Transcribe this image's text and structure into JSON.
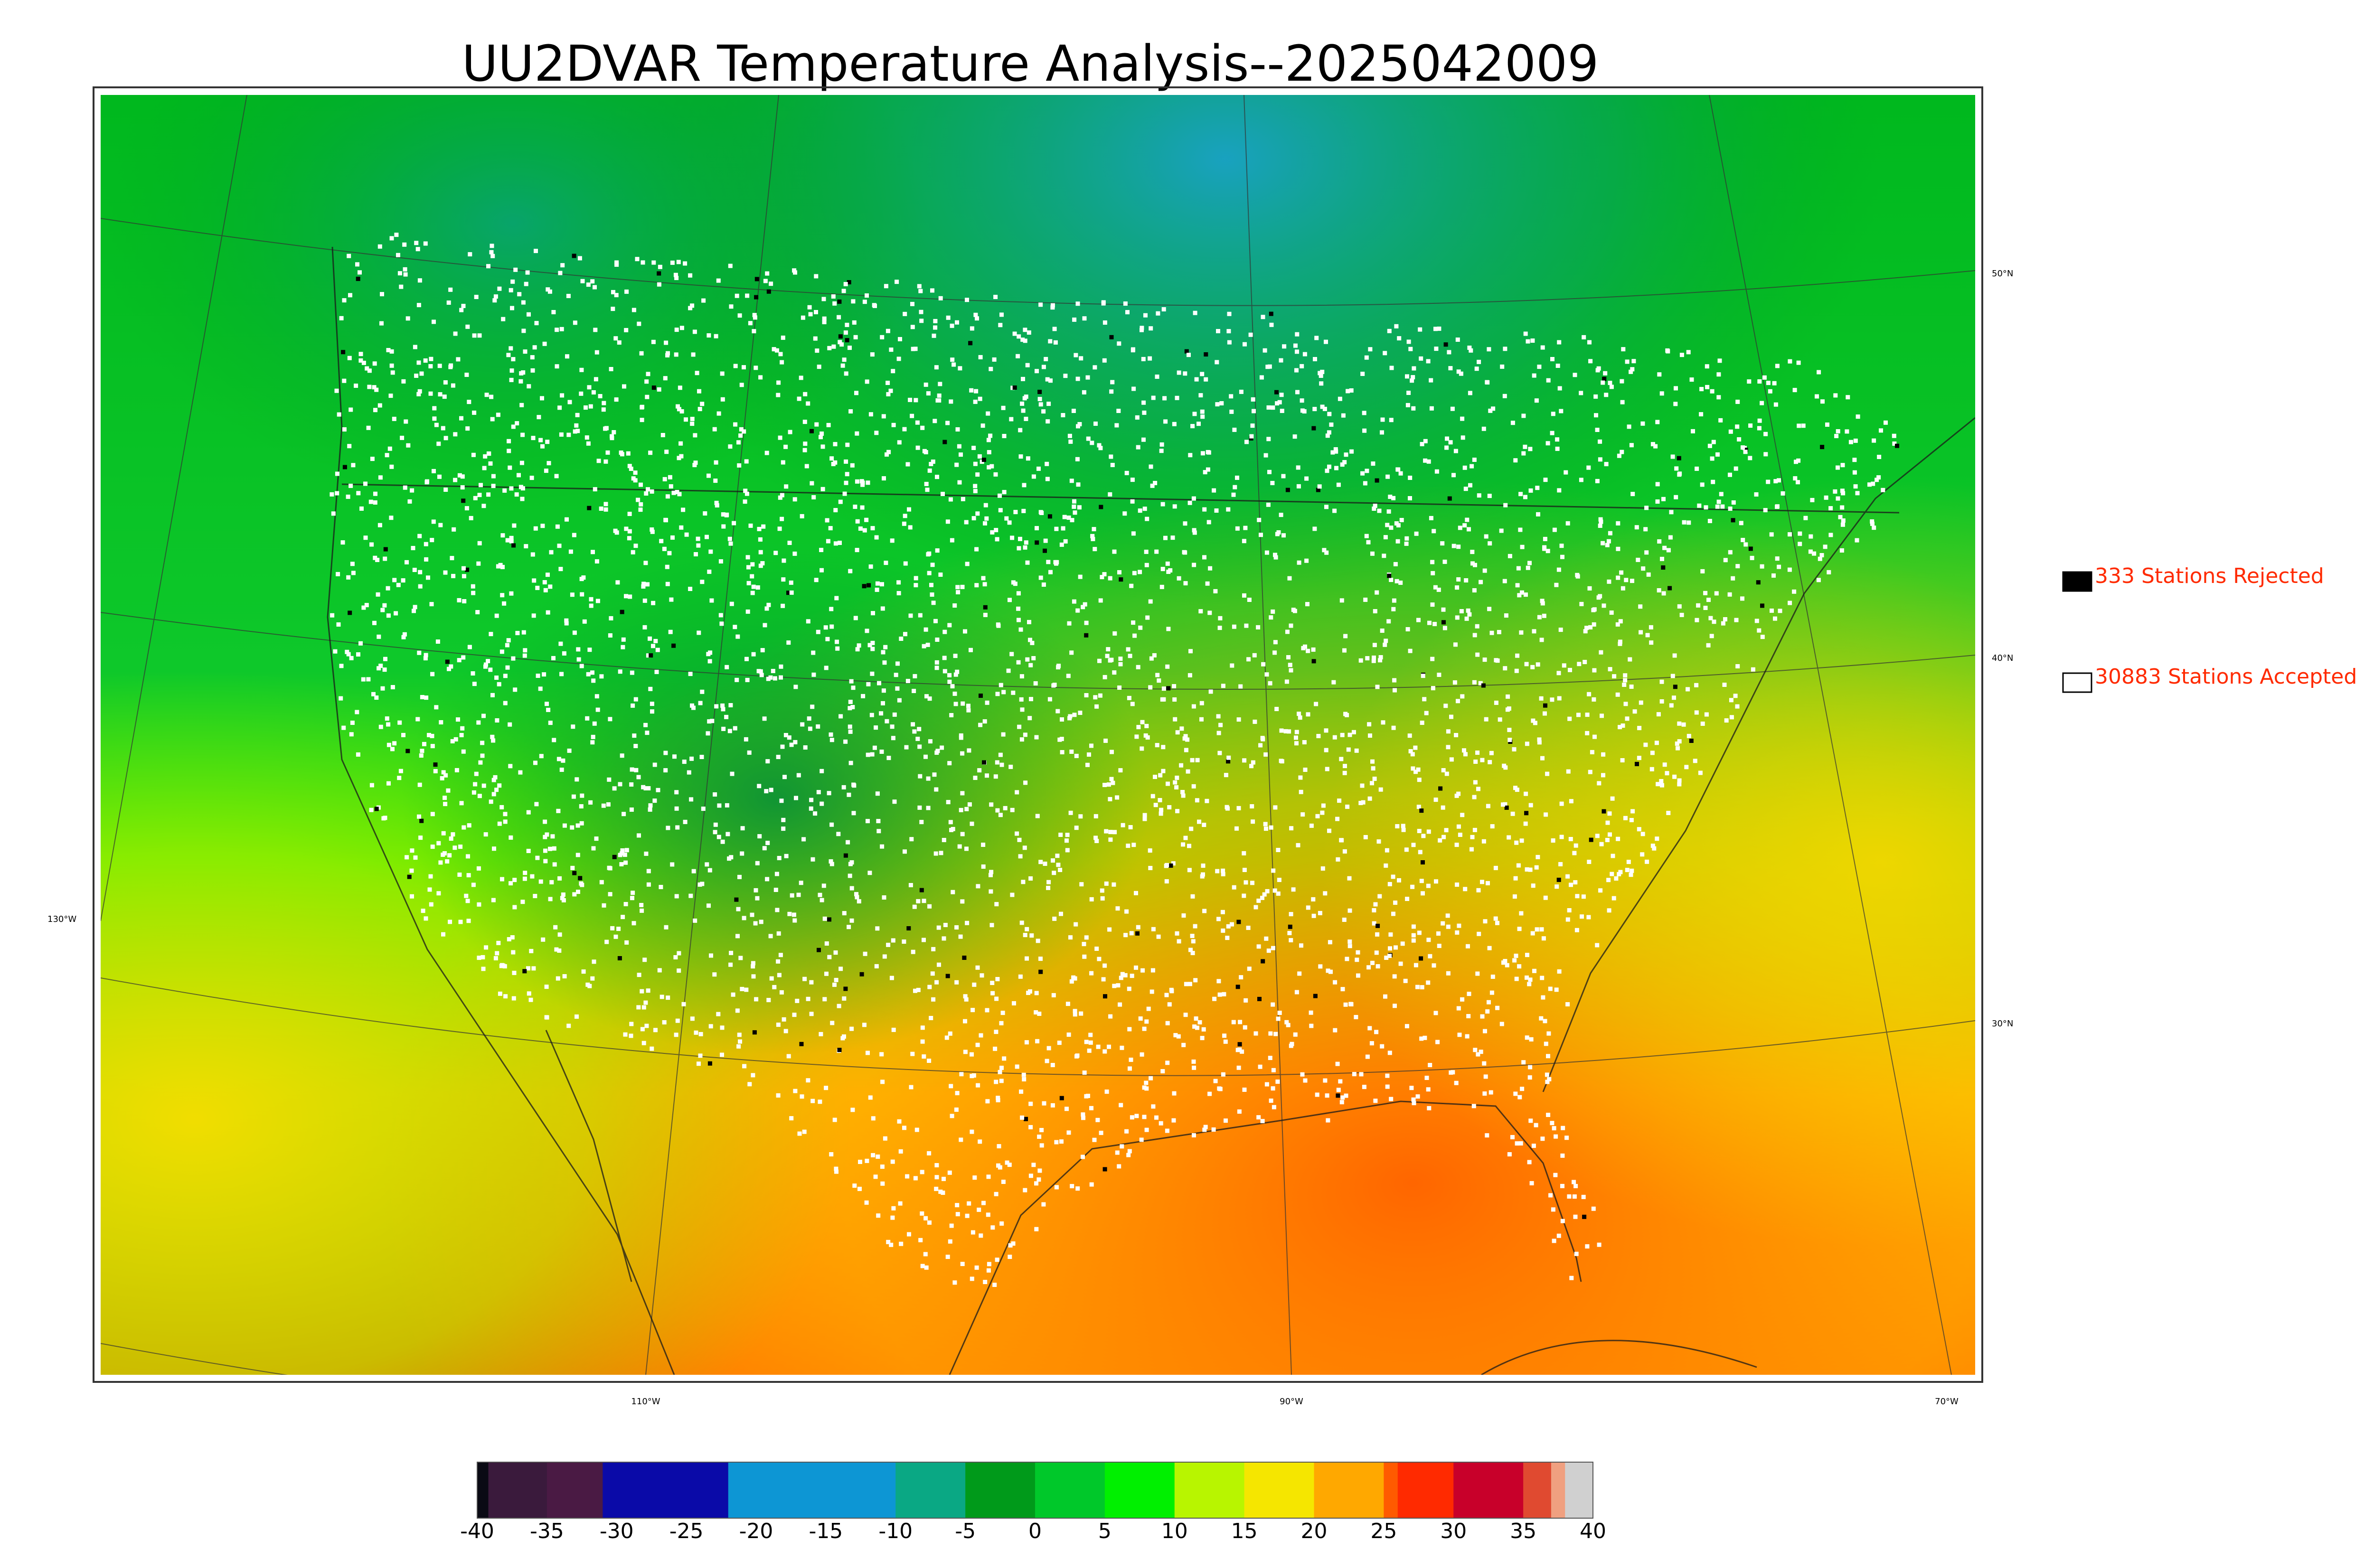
{
  "title": "UU2DVAR Temperature Analysis--2025042009",
  "legend": {
    "rejected": {
      "label": "333 Stations Rejected",
      "swatch_color": "#000000"
    },
    "accepted": {
      "label": "30883 Stations Accepted",
      "swatch_color": "#ffffff"
    },
    "text_color": "#ff2a00"
  },
  "map": {
    "longitude_labels": [
      "130°W",
      "110°W",
      "90°W",
      "70°W"
    ],
    "latitude_labels": [
      "50°N",
      "40°N",
      "30°N"
    ]
  },
  "colorbar": {
    "ticks": [
      "-40",
      "-35",
      "-30",
      "-25",
      "-20",
      "-15",
      "-10",
      "-5",
      "0",
      "5",
      "10",
      "15",
      "20",
      "25",
      "30",
      "35",
      "40"
    ],
    "range": [
      -40,
      40
    ],
    "segments": [
      {
        "from": -40,
        "to": -39.2,
        "color": "#0a0a14"
      },
      {
        "from": -39.2,
        "to": -35,
        "color": "#3a1a3c"
      },
      {
        "from": -35,
        "to": -31,
        "color": "#4a1a44"
      },
      {
        "from": -31,
        "to": -22,
        "color": "#0a0aa8"
      },
      {
        "from": -22,
        "to": -10,
        "color": "#0d96d4"
      },
      {
        "from": -10,
        "to": -5,
        "color": "#0aa884"
      },
      {
        "from": -5,
        "to": 0,
        "color": "#009a1a"
      },
      {
        "from": 0,
        "to": 5,
        "color": "#00c82a"
      },
      {
        "from": 5,
        "to": 10,
        "color": "#00f000"
      },
      {
        "from": 10,
        "to": 15,
        "color": "#b8f500"
      },
      {
        "from": 15,
        "to": 20,
        "color": "#f5e600"
      },
      {
        "from": 20,
        "to": 25,
        "color": "#ffa800"
      },
      {
        "from": 25,
        "to": 26,
        "color": "#ff5a00"
      },
      {
        "from": 26,
        "to": 30,
        "color": "#ff2a00"
      },
      {
        "from": 30,
        "to": 35,
        "color": "#c8002a"
      },
      {
        "from": 35,
        "to": 37,
        "color": "#e04a30"
      },
      {
        "from": 37,
        "to": 38,
        "color": "#f0a080"
      },
      {
        "from": 38,
        "to": 40,
        "color": "#d0d0d0"
      }
    ]
  }
}
